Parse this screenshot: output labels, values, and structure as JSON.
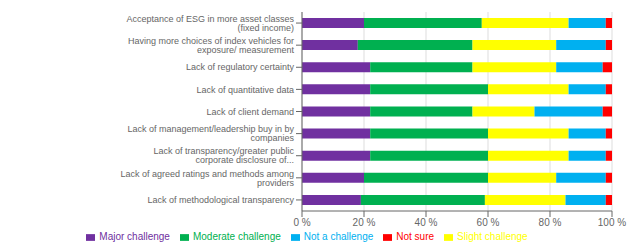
{
  "chart_data": {
    "type": "bar",
    "orientation": "horizontal",
    "stacked": true,
    "categories": [
      "Acceptance of ESG in more asset classes (fixed income)",
      "Having more choices of index vehicles for exposure/ measurement",
      "Lack of regulatory certainty",
      "Lack of quantitative data",
      "Lack of client demand",
      "Lack of management/leadership buy in by companies",
      "Lack of transparency/greater public corporate disclosure of...",
      "Lack of agreed ratings and methods among providers",
      "Lack of methodological transparency"
    ],
    "series": [
      {
        "name": "Major challenge",
        "color": "#7030a0",
        "values": [
          20,
          18,
          22,
          22,
          22,
          22,
          22,
          20,
          19
        ]
      },
      {
        "name": "Moderate challenge",
        "color": "#00b050",
        "values": [
          38,
          37,
          33,
          38,
          33,
          38,
          38,
          40,
          40
        ]
      },
      {
        "name": "Slight challenge",
        "color": "#ffff00",
        "values": [
          28,
          27,
          27,
          26,
          20,
          26,
          26,
          22,
          26
        ]
      },
      {
        "name": "Not a challenge",
        "color": "#00b0f0",
        "values": [
          12,
          16,
          15,
          12,
          22,
          12,
          12,
          16,
          13
        ]
      },
      {
        "name": "Not sure",
        "color": "#ff0000",
        "values": [
          2,
          2,
          3,
          2,
          3,
          2,
          2,
          2,
          2
        ]
      }
    ],
    "xlim": [
      0,
      100
    ],
    "xticks": [
      {
        "value": 0,
        "label": "0 %"
      },
      {
        "value": 20,
        "label": "20 %"
      },
      {
        "value": 40,
        "label": "40 %"
      },
      {
        "value": 60,
        "label": "60 %"
      },
      {
        "value": 80,
        "label": "80 %"
      },
      {
        "value": 100,
        "label": "100 %"
      }
    ],
    "grid": true,
    "legend": "bottom"
  }
}
